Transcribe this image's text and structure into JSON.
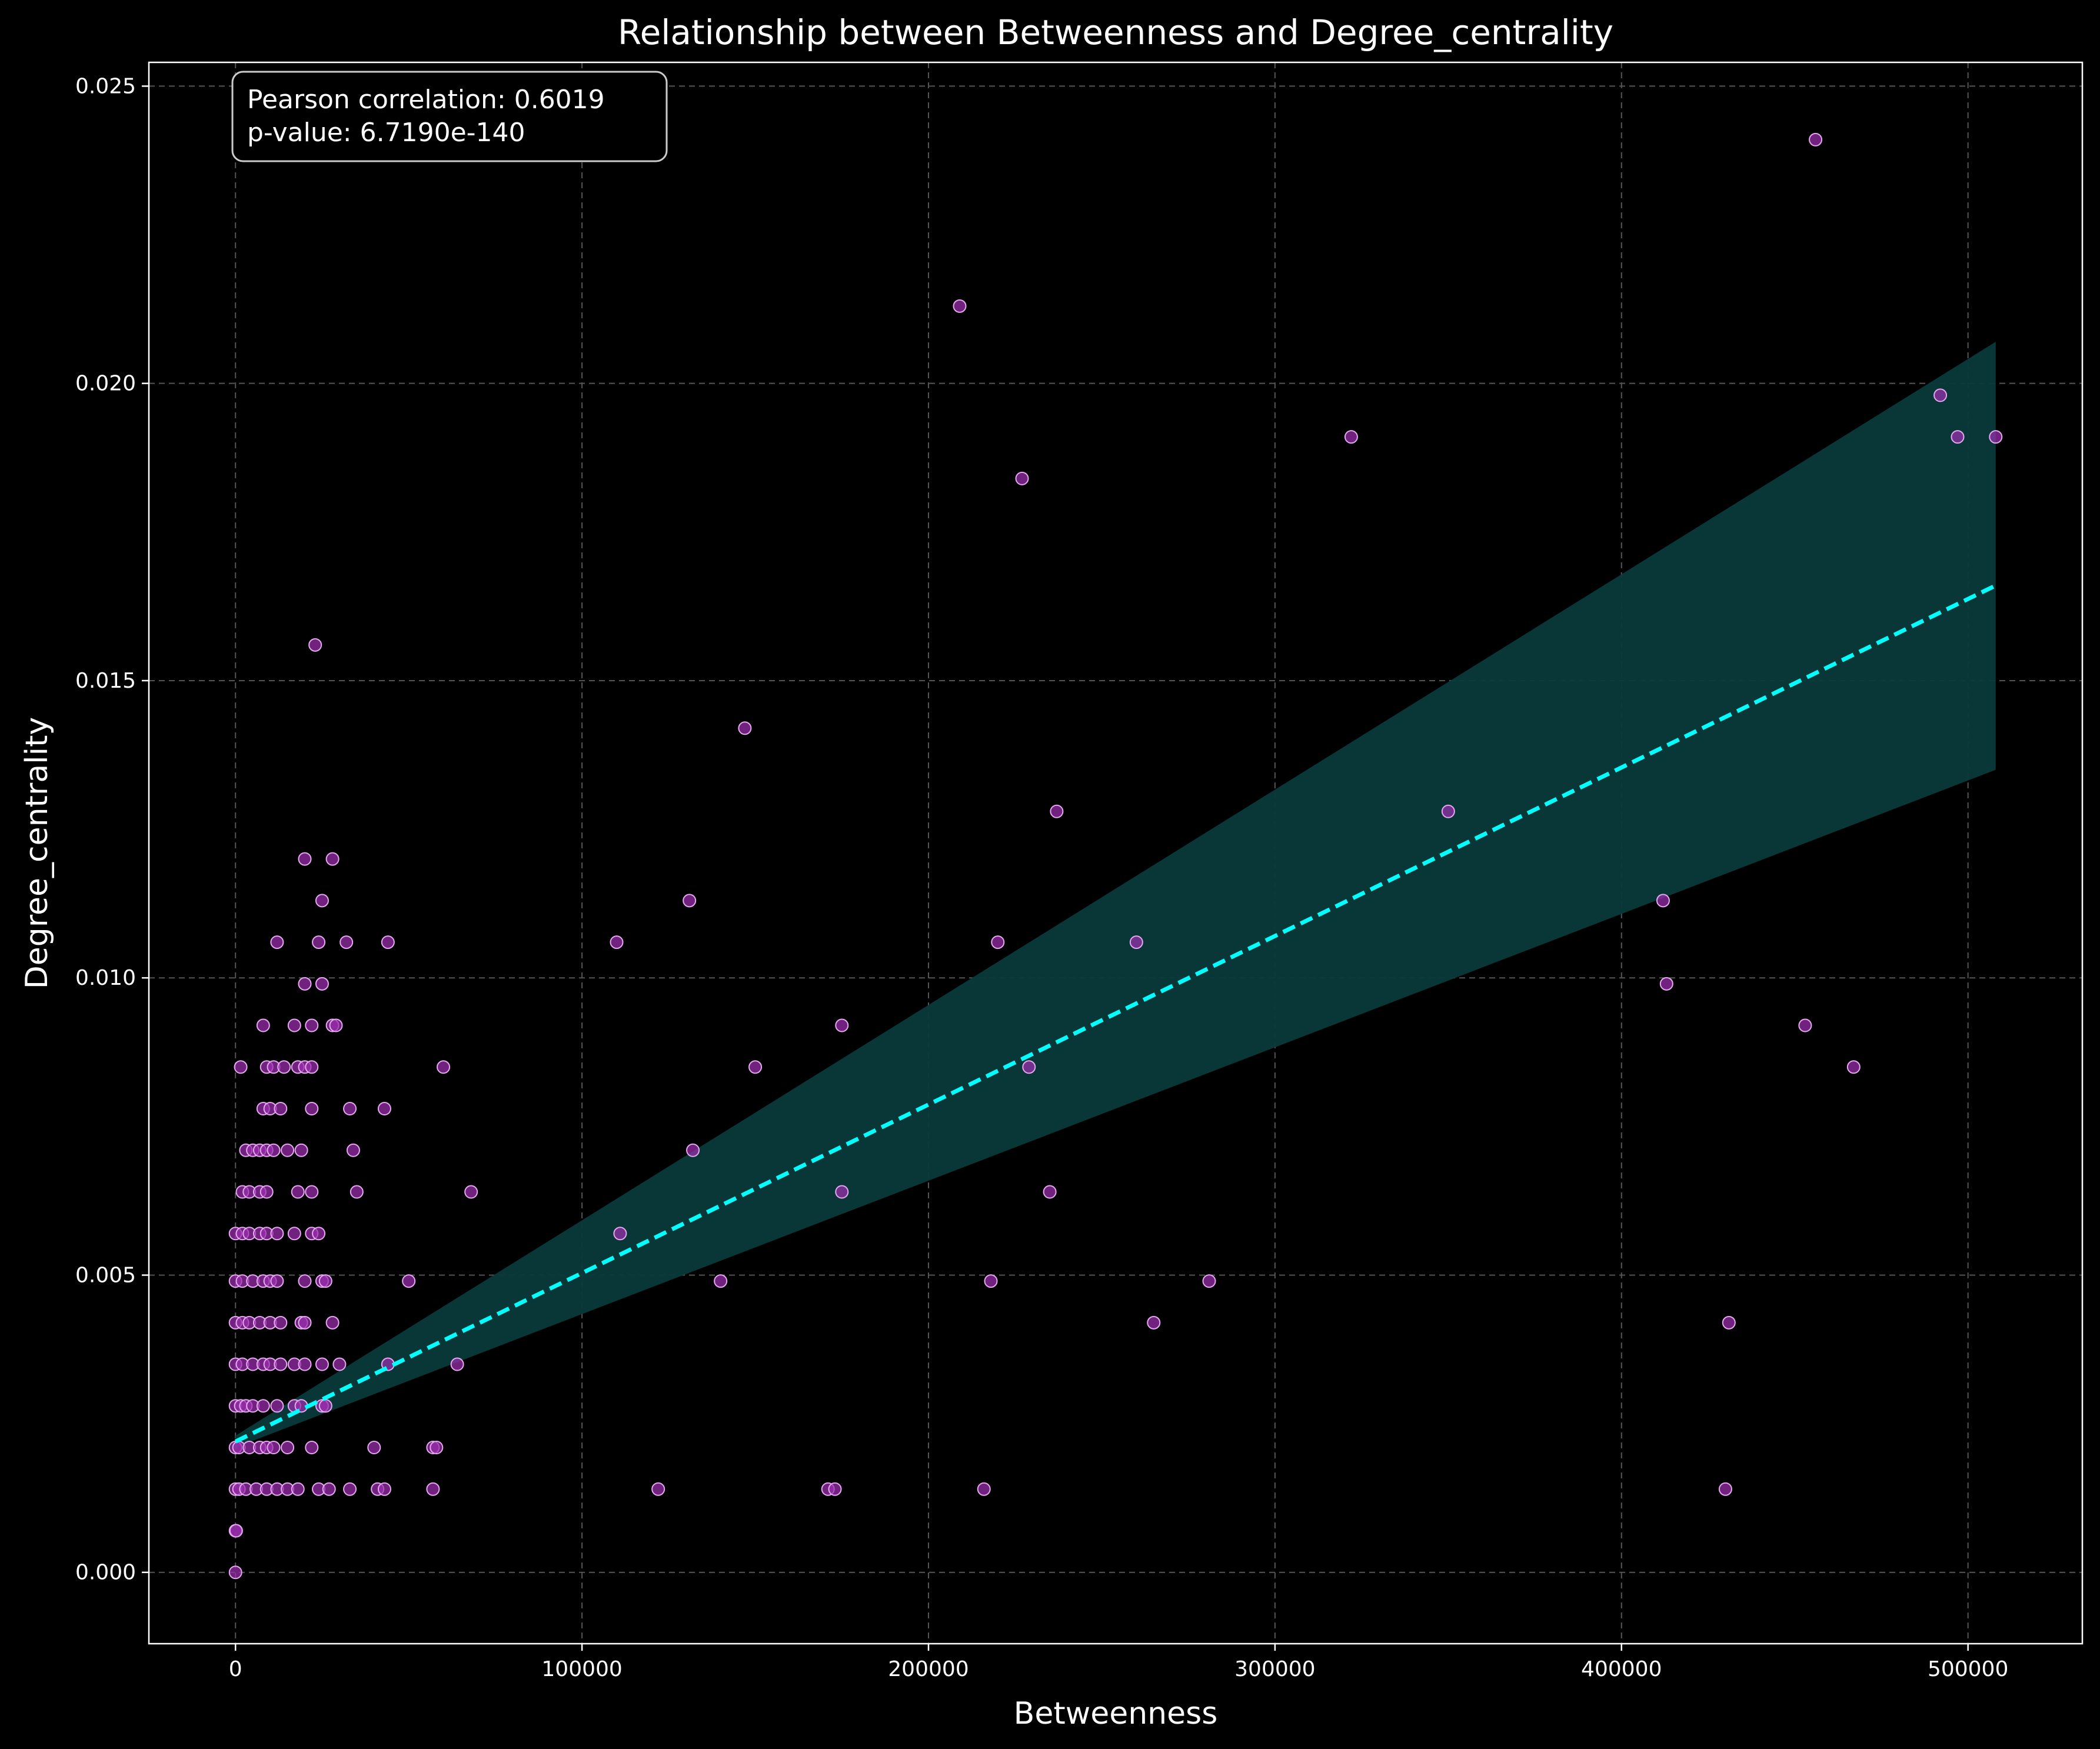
{
  "chart_data": {
    "type": "scatter",
    "title": "Relationship between Betweenness and Degree_centrality",
    "xlabel": "Betweenness",
    "ylabel": "Degree_centrality",
    "xlim": [
      -25000,
      533000
    ],
    "ylim": [
      -0.0012,
      0.0254
    ],
    "xticks": [
      0,
      100000,
      200000,
      300000,
      400000,
      500000
    ],
    "xtick_labels": [
      "0",
      "100000",
      "200000",
      "300000",
      "400000",
      "500000"
    ],
    "yticks": [
      0.0,
      0.005,
      0.01,
      0.015,
      0.02,
      0.025
    ],
    "ytick_labels": [
      "0.000",
      "0.005",
      "0.010",
      "0.015",
      "0.020",
      "0.025"
    ],
    "grid": true,
    "annotation": {
      "lines": [
        "Pearson correlation: 0.6019",
        "p-value: 6.7190e-140"
      ],
      "placement": "top-left"
    },
    "colors": {
      "background": "#000000",
      "points_fill": "#9b2fae",
      "points_edge": "#e6a8f0",
      "regression_line": "#00ffff",
      "confidence_band": "#0a3a3a",
      "grid": "#555555"
    },
    "regression": {
      "x": [
        0,
        508000
      ],
      "y": [
        0.0022,
        0.0166
      ],
      "band_start": [
        0.0021,
        0.0023
      ],
      "band_end": [
        0.0135,
        0.0207
      ]
    },
    "points": [
      {
        "x": 0,
        "y": 0.0
      },
      {
        "x": 0,
        "y": 0.0007
      },
      {
        "x": 200,
        "y": 0.0007
      },
      {
        "x": 0,
        "y": 0.0014
      },
      {
        "x": 1000,
        "y": 0.0014
      },
      {
        "x": 3000,
        "y": 0.0014
      },
      {
        "x": 6000,
        "y": 0.0014
      },
      {
        "x": 9000,
        "y": 0.0014
      },
      {
        "x": 12000,
        "y": 0.0014
      },
      {
        "x": 15000,
        "y": 0.0014
      },
      {
        "x": 18000,
        "y": 0.0014
      },
      {
        "x": 24000,
        "y": 0.0014
      },
      {
        "x": 27000,
        "y": 0.0014
      },
      {
        "x": 33000,
        "y": 0.0014
      },
      {
        "x": 41000,
        "y": 0.0014
      },
      {
        "x": 43000,
        "y": 0.0014
      },
      {
        "x": 57000,
        "y": 0.0014
      },
      {
        "x": 122000,
        "y": 0.0014
      },
      {
        "x": 171000,
        "y": 0.0014
      },
      {
        "x": 173000,
        "y": 0.0014
      },
      {
        "x": 216000,
        "y": 0.0014
      },
      {
        "x": 430000,
        "y": 0.0014
      },
      {
        "x": 0,
        "y": 0.0021
      },
      {
        "x": 1000,
        "y": 0.0021
      },
      {
        "x": 4000,
        "y": 0.0021
      },
      {
        "x": 7000,
        "y": 0.0021
      },
      {
        "x": 9000,
        "y": 0.0021
      },
      {
        "x": 11000,
        "y": 0.0021
      },
      {
        "x": 15000,
        "y": 0.0021
      },
      {
        "x": 22000,
        "y": 0.0021
      },
      {
        "x": 40000,
        "y": 0.0021
      },
      {
        "x": 57000,
        "y": 0.0021
      },
      {
        "x": 58000,
        "y": 0.0021
      },
      {
        "x": 0,
        "y": 0.0028
      },
      {
        "x": 1500,
        "y": 0.0028
      },
      {
        "x": 3000,
        "y": 0.0028
      },
      {
        "x": 5000,
        "y": 0.0028
      },
      {
        "x": 8000,
        "y": 0.0028
      },
      {
        "x": 12000,
        "y": 0.0028
      },
      {
        "x": 17000,
        "y": 0.0028
      },
      {
        "x": 19000,
        "y": 0.0028
      },
      {
        "x": 25000,
        "y": 0.0028
      },
      {
        "x": 26000,
        "y": 0.0028
      },
      {
        "x": 0,
        "y": 0.0035
      },
      {
        "x": 2000,
        "y": 0.0035
      },
      {
        "x": 5000,
        "y": 0.0035
      },
      {
        "x": 8000,
        "y": 0.0035
      },
      {
        "x": 10000,
        "y": 0.0035
      },
      {
        "x": 13000,
        "y": 0.0035
      },
      {
        "x": 17000,
        "y": 0.0035
      },
      {
        "x": 20000,
        "y": 0.0035
      },
      {
        "x": 25000,
        "y": 0.0035
      },
      {
        "x": 30000,
        "y": 0.0035
      },
      {
        "x": 44000,
        "y": 0.0035
      },
      {
        "x": 64000,
        "y": 0.0035
      },
      {
        "x": 0,
        "y": 0.0042
      },
      {
        "x": 2000,
        "y": 0.0042
      },
      {
        "x": 4000,
        "y": 0.0042
      },
      {
        "x": 7000,
        "y": 0.0042
      },
      {
        "x": 10000,
        "y": 0.0042
      },
      {
        "x": 13000,
        "y": 0.0042
      },
      {
        "x": 19000,
        "y": 0.0042
      },
      {
        "x": 20000,
        "y": 0.0042
      },
      {
        "x": 28000,
        "y": 0.0042
      },
      {
        "x": 265000,
        "y": 0.0042
      },
      {
        "x": 431000,
        "y": 0.0042
      },
      {
        "x": 0,
        "y": 0.0049
      },
      {
        "x": 2000,
        "y": 0.0049
      },
      {
        "x": 5000,
        "y": 0.0049
      },
      {
        "x": 8000,
        "y": 0.0049
      },
      {
        "x": 10000,
        "y": 0.0049
      },
      {
        "x": 12000,
        "y": 0.0049
      },
      {
        "x": 20000,
        "y": 0.0049
      },
      {
        "x": 25000,
        "y": 0.0049
      },
      {
        "x": 26000,
        "y": 0.0049
      },
      {
        "x": 50000,
        "y": 0.0049
      },
      {
        "x": 140000,
        "y": 0.0049
      },
      {
        "x": 218000,
        "y": 0.0049
      },
      {
        "x": 281000,
        "y": 0.0049
      },
      {
        "x": 0,
        "y": 0.0057
      },
      {
        "x": 2000,
        "y": 0.0057
      },
      {
        "x": 4000,
        "y": 0.0057
      },
      {
        "x": 7000,
        "y": 0.0057
      },
      {
        "x": 9000,
        "y": 0.0057
      },
      {
        "x": 12000,
        "y": 0.0057
      },
      {
        "x": 17000,
        "y": 0.0057
      },
      {
        "x": 22000,
        "y": 0.0057
      },
      {
        "x": 24000,
        "y": 0.0057
      },
      {
        "x": 111000,
        "y": 0.0057
      },
      {
        "x": 2000,
        "y": 0.0064
      },
      {
        "x": 4000,
        "y": 0.0064
      },
      {
        "x": 7000,
        "y": 0.0064
      },
      {
        "x": 9000,
        "y": 0.0064
      },
      {
        "x": 18000,
        "y": 0.0064
      },
      {
        "x": 22000,
        "y": 0.0064
      },
      {
        "x": 35000,
        "y": 0.0064
      },
      {
        "x": 68000,
        "y": 0.0064
      },
      {
        "x": 175000,
        "y": 0.0064
      },
      {
        "x": 235000,
        "y": 0.0064
      },
      {
        "x": 3000,
        "y": 0.0071
      },
      {
        "x": 5000,
        "y": 0.0071
      },
      {
        "x": 7000,
        "y": 0.0071
      },
      {
        "x": 9000,
        "y": 0.0071
      },
      {
        "x": 11000,
        "y": 0.0071
      },
      {
        "x": 15000,
        "y": 0.0071
      },
      {
        "x": 19000,
        "y": 0.0071
      },
      {
        "x": 34000,
        "y": 0.0071
      },
      {
        "x": 132000,
        "y": 0.0071
      },
      {
        "x": 8000,
        "y": 0.0078
      },
      {
        "x": 10000,
        "y": 0.0078
      },
      {
        "x": 13000,
        "y": 0.0078
      },
      {
        "x": 22000,
        "y": 0.0078
      },
      {
        "x": 33000,
        "y": 0.0078
      },
      {
        "x": 43000,
        "y": 0.0078
      },
      {
        "x": 1500,
        "y": 0.0085
      },
      {
        "x": 9000,
        "y": 0.0085
      },
      {
        "x": 11000,
        "y": 0.0085
      },
      {
        "x": 14000,
        "y": 0.0085
      },
      {
        "x": 18000,
        "y": 0.0085
      },
      {
        "x": 20000,
        "y": 0.0085
      },
      {
        "x": 22000,
        "y": 0.0085
      },
      {
        "x": 60000,
        "y": 0.0085
      },
      {
        "x": 150000,
        "y": 0.0085
      },
      {
        "x": 229000,
        "y": 0.0085
      },
      {
        "x": 467000,
        "y": 0.0085
      },
      {
        "x": 8000,
        "y": 0.0092
      },
      {
        "x": 17000,
        "y": 0.0092
      },
      {
        "x": 22000,
        "y": 0.0092
      },
      {
        "x": 28000,
        "y": 0.0092
      },
      {
        "x": 29000,
        "y": 0.0092
      },
      {
        "x": 175000,
        "y": 0.0092
      },
      {
        "x": 453000,
        "y": 0.0092
      },
      {
        "x": 20000,
        "y": 0.0099
      },
      {
        "x": 25000,
        "y": 0.0099
      },
      {
        "x": 413000,
        "y": 0.0099
      },
      {
        "x": 12000,
        "y": 0.0106
      },
      {
        "x": 24000,
        "y": 0.0106
      },
      {
        "x": 32000,
        "y": 0.0106
      },
      {
        "x": 44000,
        "y": 0.0106
      },
      {
        "x": 110000,
        "y": 0.0106
      },
      {
        "x": 220000,
        "y": 0.0106
      },
      {
        "x": 260000,
        "y": 0.0106
      },
      {
        "x": 25000,
        "y": 0.0113
      },
      {
        "x": 131000,
        "y": 0.0113
      },
      {
        "x": 412000,
        "y": 0.0113
      },
      {
        "x": 20000,
        "y": 0.012
      },
      {
        "x": 28000,
        "y": 0.012
      },
      {
        "x": 237000,
        "y": 0.0128
      },
      {
        "x": 350000,
        "y": 0.0128
      },
      {
        "x": 147000,
        "y": 0.0142
      },
      {
        "x": 23000,
        "y": 0.0156
      },
      {
        "x": 227000,
        "y": 0.0184
      },
      {
        "x": 322000,
        "y": 0.0191
      },
      {
        "x": 497000,
        "y": 0.0191
      },
      {
        "x": 508000,
        "y": 0.0191
      },
      {
        "x": 492000,
        "y": 0.0198
      },
      {
        "x": 209000,
        "y": 0.0213
      },
      {
        "x": 456000,
        "y": 0.0241
      }
    ]
  }
}
